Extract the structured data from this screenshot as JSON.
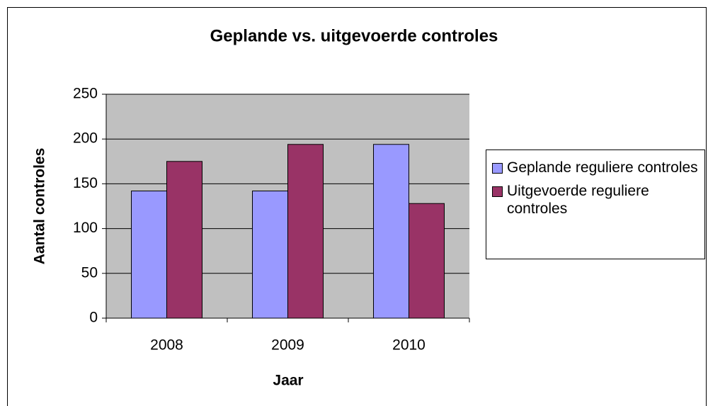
{
  "chart_data": {
    "type": "bar",
    "title": "Geplande vs. uitgevoerde controles",
    "x_label": "Jaar",
    "y_label": "Aantal controles",
    "categories": [
      "2008",
      "2009",
      "2010"
    ],
    "series": [
      {
        "name": "Geplande reguliere controles",
        "color": "#9999ff",
        "values": [
          142,
          142,
          194
        ]
      },
      {
        "name": "Uitgevoerde reguliere controles",
        "color": "#993366",
        "values": [
          175,
          194,
          128
        ]
      }
    ],
    "ylim": [
      0,
      250
    ],
    "yticks": [
      0,
      50,
      100,
      150,
      200,
      250
    ],
    "grid": true,
    "legend": "right"
  }
}
